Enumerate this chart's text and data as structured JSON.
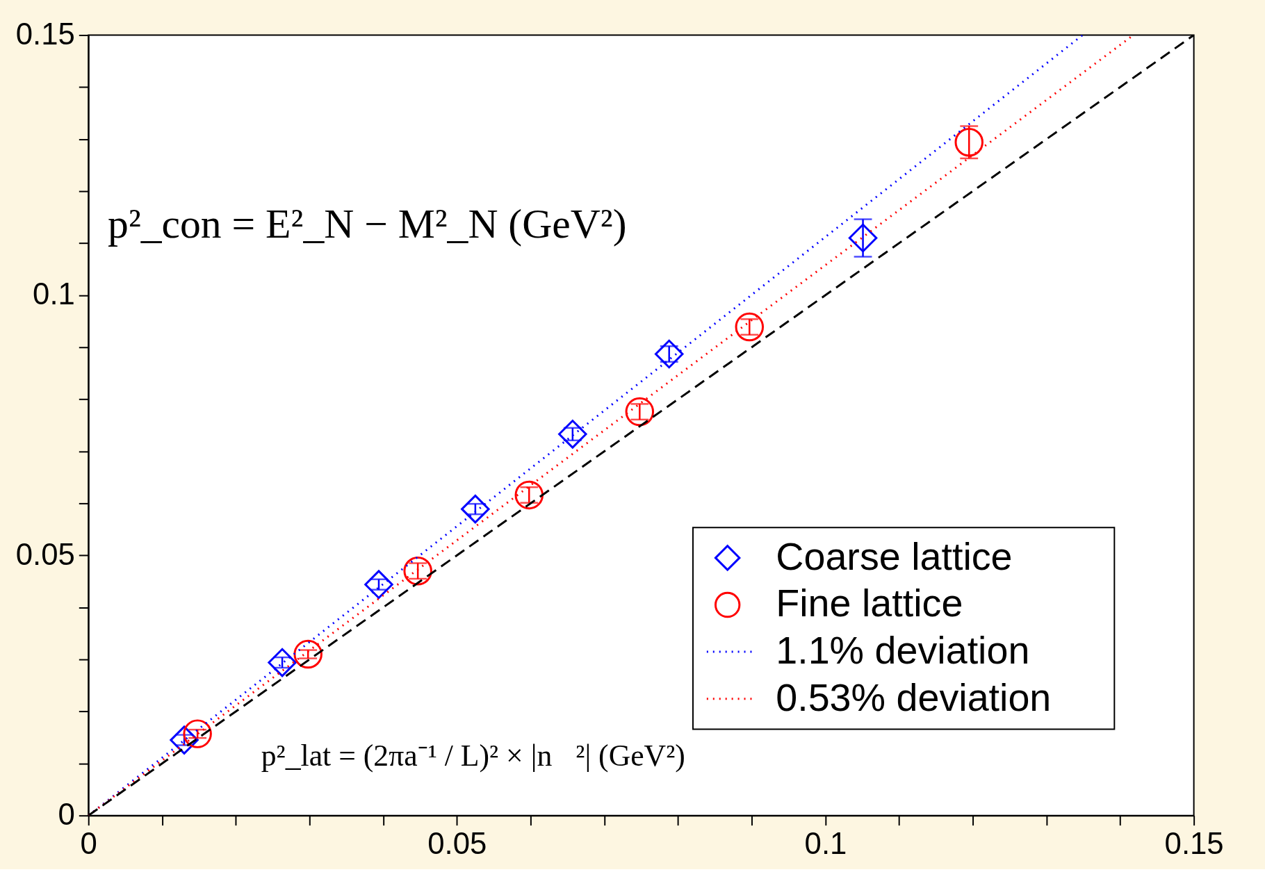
{
  "chart_data": {
    "type": "scatter",
    "xlabel": "p²_lat = (2πa⁻¹ / L)² × |n⃗²| (GeV²)",
    "ylabel": "p²_con = E²_N − M²_N (GeV²)",
    "xlim": [
      0,
      0.15
    ],
    "ylim": [
      0,
      0.15
    ],
    "xticks": [
      0,
      {
        "value": 0.01,
        "label": null
      },
      {
        "value": 0.02,
        "label": null
      },
      {
        "value": 0.03,
        "label": null
      },
      {
        "value": 0.04,
        "label": null
      },
      0.05,
      {
        "value": 0.06,
        "label": null
      },
      {
        "value": 0.07,
        "label": null
      },
      {
        "value": 0.08,
        "label": null
      },
      {
        "value": 0.09,
        "label": null
      },
      0.1,
      {
        "value": 0.11,
        "label": null
      },
      {
        "value": 0.12,
        "label": null
      },
      {
        "value": 0.13,
        "label": null
      },
      {
        "value": 0.14,
        "label": null
      },
      0.15
    ],
    "yticks": [
      0,
      {
        "value": 0.01,
        "label": null
      },
      {
        "value": 0.02,
        "label": null
      },
      {
        "value": 0.03,
        "label": null
      },
      {
        "value": 0.04,
        "label": null
      },
      0.05,
      {
        "value": 0.06,
        "label": null
      },
      {
        "value": 0.07,
        "label": null
      },
      {
        "value": 0.08,
        "label": null
      },
      {
        "value": 0.09,
        "label": null
      },
      0.1,
      {
        "value": 0.11,
        "label": null
      },
      {
        "value": 0.12,
        "label": null
      },
      {
        "value": 0.13,
        "label": null
      },
      {
        "value": 0.14,
        "label": null
      },
      0.15
    ],
    "grid": false,
    "legend": "bottom right",
    "series": [
      {
        "name": "Coarse lattice",
        "marker": "diamond",
        "color": "#0000ff",
        "x": [
          0.013,
          0.0263,
          0.0394,
          0.0525,
          0.0657,
          0.0788,
          0.1051
        ],
        "values": [
          0.0145,
          0.0294,
          0.0444,
          0.0589,
          0.0733,
          0.0887,
          0.111
        ],
        "errors": [
          0.001,
          0.001,
          0.001,
          0.001,
          0.0012,
          0.0015,
          0.0036
        ]
      },
      {
        "name": "Fine lattice",
        "marker": "circle",
        "color": "#ff0000",
        "x": [
          0.0148,
          0.0298,
          0.0447,
          0.0598,
          0.0748,
          0.0897,
          0.1195
        ],
        "values": [
          0.0157,
          0.031,
          0.047,
          0.0616,
          0.0776,
          0.0939,
          0.1294
        ],
        "errors": [
          0.0008,
          0.0008,
          0.0015,
          0.0015,
          0.0015,
          0.0015,
          0.0031
        ]
      },
      {
        "name": "1.1%   deviation",
        "type": "line",
        "line_style": "dotted",
        "color": "#0000ff",
        "x": [
          0,
          0.1349
        ],
        "values": [
          0,
          0.15
        ]
      },
      {
        "name": "0.53% deviation",
        "type": "line",
        "line_style": "dotted",
        "color": "#ff0000",
        "x": [
          0,
          0.1418
        ],
        "values": [
          0,
          0.15
        ]
      },
      {
        "type": "line",
        "line_style": "dashed",
        "color": "#000000",
        "x": [
          0,
          0.15
        ],
        "values": [
          0,
          0.15
        ]
      }
    ]
  }
}
